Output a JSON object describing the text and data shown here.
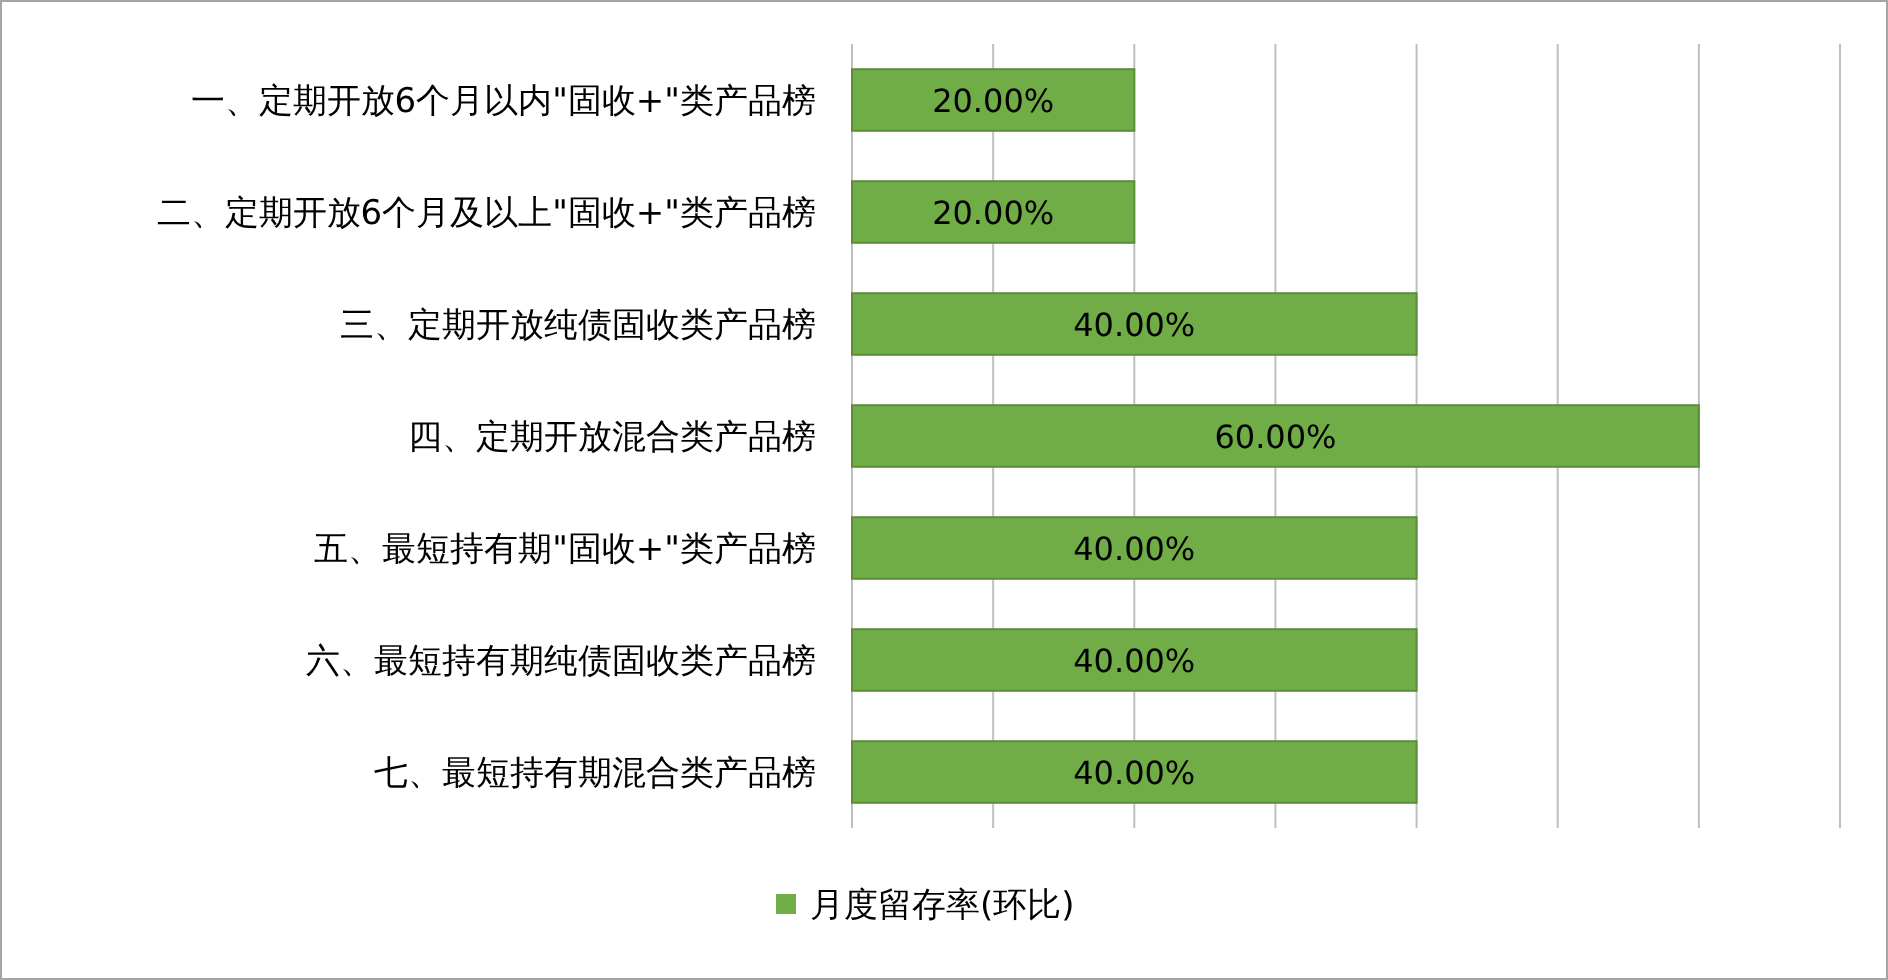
{
  "chart_data": {
    "type": "bar",
    "orientation": "horizontal",
    "categories": [
      "一、定期开放6个月以内\"固收+\"类产品榜",
      "二、定期开放6个月及以上\"固收+\"类产品榜",
      "三、定期开放纯债固收类产品榜",
      "四、定期开放混合类产品榜",
      "五、最短持有期\"固收+\"类产品榜",
      "六、最短持有期纯债固收类产品榜",
      "七、最短持有期混合类产品榜"
    ],
    "series": [
      {
        "name": "月度留存率(环比)",
        "color": "#70ad47",
        "values": [
          20,
          20,
          40,
          60,
          40,
          40,
          40
        ],
        "value_labels": [
          "20.00%",
          "20.00%",
          "40.00%",
          "60.00%",
          "40.00%",
          "40.00%",
          "40.00%"
        ]
      }
    ],
    "xlim": [
      0,
      70
    ],
    "xticks": [
      {
        "value": 0,
        "label": null
      },
      {
        "value": 10,
        "label": null
      },
      {
        "value": 20,
        "label": null
      },
      {
        "value": 30,
        "label": null
      },
      {
        "value": 40,
        "label": null
      },
      {
        "value": 50,
        "label": null
      },
      {
        "value": 60,
        "label": null
      },
      {
        "value": 70,
        "label": null
      }
    ],
    "tick_labels": "y",
    "grid": "x",
    "legend": "bottom"
  }
}
